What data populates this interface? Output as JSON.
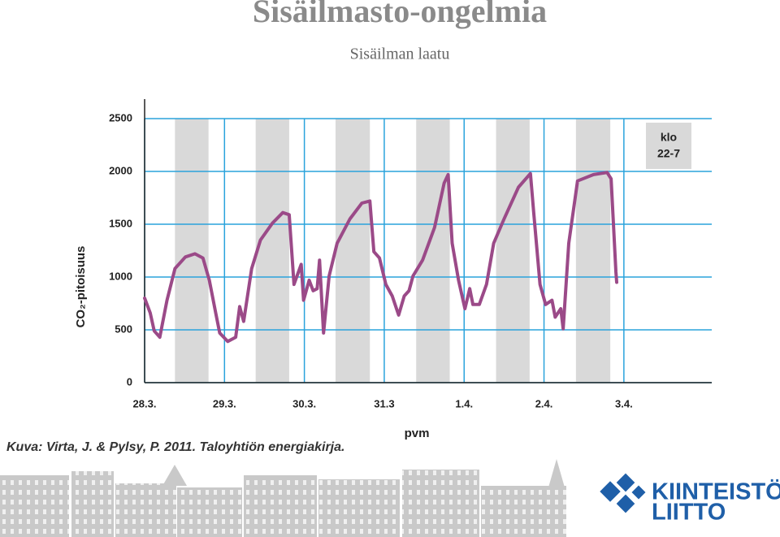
{
  "title": "Sisäilmasto-ongelmia",
  "subtitle": "Sisäilman laatu",
  "caption": "Kuva: Virta, J. & Pylsy, P. 2011. Taloyhtiön energiakirja.",
  "logo": [
    "KIINTEISTÖ",
    "LIITTO"
  ],
  "chart_data": {
    "type": "line",
    "y_label": "CO₂-pitoisuus",
    "x_label": "pvm",
    "band_label": [
      "klo",
      "22-7"
    ],
    "night_bands": [
      [
        0.38,
        0.8
      ],
      [
        1.39,
        1.81
      ],
      [
        2.39,
        2.82
      ],
      [
        3.4,
        3.82
      ],
      [
        4.4,
        4.82
      ],
      [
        5.4,
        5.83
      ]
    ],
    "band_color": "#d9d9d9",
    "xlim": [
      0,
      7.1
    ],
    "ylim": [
      0,
      2500
    ],
    "xticks": [
      {
        "value": 0,
        "label": "28.3."
      },
      {
        "value": 1,
        "label": "29.3."
      },
      {
        "value": 2,
        "label": "30.3."
      },
      {
        "value": 3,
        "label": "31.3"
      },
      {
        "value": 4,
        "label": "1.4."
      },
      {
        "value": 5,
        "label": "2.4."
      },
      {
        "value": 6,
        "label": "3.4."
      }
    ],
    "yticks": [
      0,
      500,
      1000,
      1500,
      2000,
      2500
    ],
    "grid": true,
    "grid_color": "#2aa3dc",
    "series": [
      {
        "color": "#9b4a88",
        "x": [
          0,
          0.07,
          0.12,
          0.19,
          0.28,
          0.38,
          0.51,
          0.63,
          0.73,
          0.81,
          0.89,
          0.94,
          1.04,
          1.14,
          1.19,
          1.24,
          1.34,
          1.45,
          1.6,
          1.73,
          1.81,
          1.87,
          1.96,
          1.99,
          2.06,
          2.11,
          2.16,
          2.19,
          2.24,
          2.31,
          2.41,
          2.57,
          2.72,
          2.82,
          2.87,
          2.94,
          3.02,
          3.1,
          3.18,
          3.25,
          3.31,
          3.36,
          3.48,
          3.63,
          3.75,
          3.8,
          3.85,
          3.93,
          4.01,
          4.07,
          4.11,
          4.19,
          4.28,
          4.37,
          4.5,
          4.68,
          4.83,
          4.87,
          4.95,
          5.02,
          5.1,
          5.14,
          5.21,
          5.24,
          5.31,
          5.42,
          5.62,
          5.79,
          5.84,
          5.9,
          5.91
        ],
        "values": [
          800,
          660,
          490,
          430,
          780,
          1080,
          1190,
          1220,
          1180,
          970,
          660,
          470,
          390,
          430,
          720,
          580,
          1080,
          1350,
          1510,
          1610,
          1590,
          930,
          1120,
          780,
          970,
          870,
          890,
          1160,
          470,
          1010,
          1320,
          1550,
          1700,
          1720,
          1240,
          1180,
          930,
          820,
          640,
          820,
          870,
          1010,
          1160,
          1470,
          1890,
          1970,
          1320,
          970,
          700,
          890,
          740,
          740,
          930,
          1320,
          1550,
          1850,
          1980,
          1620,
          930,
          740,
          780,
          620,
          700,
          510,
          1320,
          1910,
          1970,
          1990,
          1930,
          1050,
          950
        ]
      }
    ]
  }
}
